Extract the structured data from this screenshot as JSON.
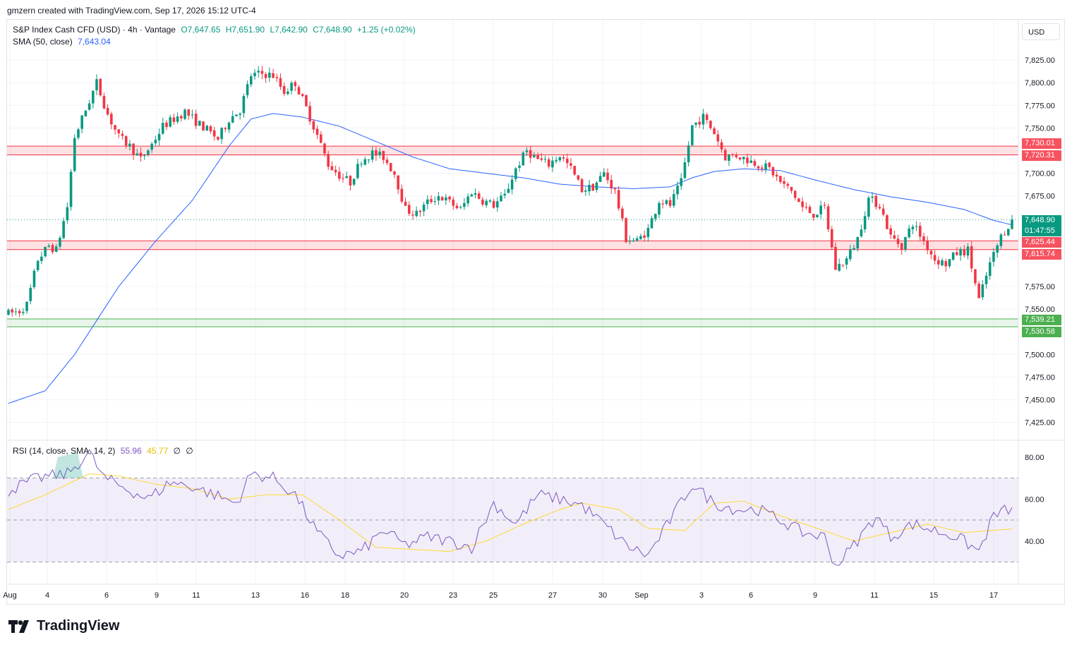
{
  "header": {
    "credit": "gmzern created with TradingView.com, Sep 17, 2026 15:12 UTC-4"
  },
  "main_legend": {
    "symbol": "S&P Index Cash CFD (USD) · 4h · Vantage",
    "open": "O7,647.65",
    "high": "H7,651.90",
    "low": "L7,642.90",
    "close": "C7,648.90",
    "change": "+1.25 (+0.02%)",
    "sma_label": "SMA (50, close)",
    "sma_value": "7,643.04"
  },
  "rsi_legend": {
    "label": "RSI (14, close, SMA, 14, 2)",
    "rsi_value": "55.96",
    "ma_value": "45.77",
    "extra1": "∅",
    "extra2": "∅"
  },
  "currency_button": "USD",
  "brand": "TradingView",
  "price_tags": {
    "r1_top": "7,730.01",
    "r1_bot": "7,720.31",
    "last": "7,648.90",
    "countdown": "01:47:55",
    "r2_top": "7,625.44",
    "r2_bot": "7,615.74",
    "s1_top": "7,539.21",
    "s1_bot": "7,530.58"
  },
  "colors": {
    "up": "#089981",
    "down": "#f23645",
    "sma": "#2962ff",
    "rsi": "#7e57c2",
    "rsi_ma": "#fdd835",
    "resistance": "#f23645",
    "support": "#4caf50"
  },
  "chart_data": {
    "type": "candlestick",
    "title": "S&P Index Cash CFD (USD) · 4h · Vantage",
    "y_ticks": [
      7825,
      7800,
      7775,
      7750,
      7700,
      7675,
      7575,
      7550,
      7500,
      7475,
      7450,
      7425
    ],
    "y_tick_labels": [
      "7,825.00",
      "7,800.00",
      "7,775.00",
      "7,750.00",
      "7,700.00",
      "7,675.00",
      "7,575.00",
      "7,550.00",
      "7,500.00",
      "7,475.00",
      "7,450.00",
      "7,425.00"
    ],
    "ylim": [
      7400,
      7840
    ],
    "x_ticks": [
      "Aug",
      "4",
      "6",
      "9",
      "11",
      "13",
      "16",
      "18",
      "20",
      "23",
      "25",
      "27",
      "30",
      "Sep",
      "3",
      "6",
      "9",
      "11",
      "15",
      "17"
    ],
    "zones": [
      {
        "name": "resistance",
        "top": 7730.01,
        "bottom": 7720.31
      },
      {
        "name": "resistance",
        "top": 7625.44,
        "bottom": 7615.74
      },
      {
        "name": "support",
        "top": 7539.21,
        "bottom": 7530.58
      }
    ],
    "last_price": 7648.9,
    "anchors": [
      [
        0,
        7545
      ],
      [
        3,
        7548
      ],
      [
        5,
        7555
      ],
      [
        8,
        7605
      ],
      [
        11,
        7620
      ],
      [
        13,
        7615
      ],
      [
        16,
        7663
      ],
      [
        18,
        7740
      ],
      [
        21,
        7770
      ],
      [
        24,
        7800
      ],
      [
        27,
        7765
      ],
      [
        30,
        7740
      ],
      [
        33,
        7730
      ],
      [
        36,
        7715
      ],
      [
        39,
        7732
      ],
      [
        42,
        7752
      ],
      [
        45,
        7760
      ],
      [
        48,
        7768
      ],
      [
        51,
        7757
      ],
      [
        54,
        7748
      ],
      [
        57,
        7738
      ],
      [
        60,
        7760
      ],
      [
        63,
        7770
      ],
      [
        66,
        7808
      ],
      [
        69,
        7810
      ],
      [
        72,
        7808
      ],
      [
        75,
        7790
      ],
      [
        78,
        7800
      ],
      [
        81,
        7772
      ],
      [
        84,
        7742
      ],
      [
        87,
        7710
      ],
      [
        90,
        7698
      ],
      [
        93,
        7690
      ],
      [
        96,
        7715
      ],
      [
        99,
        7722
      ],
      [
        102,
        7718
      ],
      [
        105,
        7700
      ],
      [
        108,
        7660
      ],
      [
        111,
        7655
      ],
      [
        114,
        7668
      ],
      [
        117,
        7675
      ],
      [
        120,
        7668
      ],
      [
        123,
        7660
      ],
      [
        126,
        7680
      ],
      [
        129,
        7670
      ],
      [
        132,
        7665
      ],
      [
        135,
        7675
      ],
      [
        138,
        7705
      ],
      [
        141,
        7725
      ],
      [
        144,
        7715
      ],
      [
        147,
        7710
      ],
      [
        150,
        7720
      ],
      [
        153,
        7705
      ],
      [
        156,
        7682
      ],
      [
        159,
        7685
      ],
      [
        162,
        7700
      ],
      [
        165,
        7680
      ],
      [
        168,
        7628
      ],
      [
        171,
        7625
      ],
      [
        174,
        7638
      ],
      [
        177,
        7670
      ],
      [
        180,
        7665
      ],
      [
        183,
        7690
      ],
      [
        186,
        7752
      ],
      [
        189,
        7762
      ],
      [
        192,
        7745
      ],
      [
        195,
        7718
      ],
      [
        198,
        7720
      ],
      [
        201,
        7715
      ],
      [
        204,
        7710
      ],
      [
        207,
        7705
      ],
      [
        210,
        7690
      ],
      [
        213,
        7680
      ],
      [
        216,
        7662
      ],
      [
        219,
        7655
      ],
      [
        222,
        7662
      ],
      [
        225,
        7595
      ],
      [
        228,
        7605
      ],
      [
        231,
        7628
      ],
      [
        234,
        7672
      ],
      [
        237,
        7665
      ],
      [
        240,
        7630
      ],
      [
        243,
        7620
      ],
      [
        246,
        7645
      ],
      [
        249,
        7625
      ],
      [
        252,
        7605
      ],
      [
        255,
        7600
      ],
      [
        258,
        7612
      ],
      [
        261,
        7615
      ],
      [
        264,
        7560
      ],
      [
        267,
        7600
      ],
      [
        270,
        7630
      ],
      [
        273,
        7648.9
      ]
    ],
    "sma50": [
      [
        0,
        7446
      ],
      [
        10,
        7460
      ],
      [
        18,
        7500
      ],
      [
        30,
        7575
      ],
      [
        40,
        7625
      ],
      [
        50,
        7670
      ],
      [
        60,
        7730
      ],
      [
        66,
        7760
      ],
      [
        72,
        7766
      ],
      [
        80,
        7762
      ],
      [
        90,
        7752
      ],
      [
        100,
        7735
      ],
      [
        110,
        7718
      ],
      [
        120,
        7705
      ],
      [
        130,
        7700
      ],
      [
        140,
        7695
      ],
      [
        150,
        7688
      ],
      [
        160,
        7685
      ],
      [
        170,
        7683
      ],
      [
        180,
        7685
      ],
      [
        186,
        7695
      ],
      [
        192,
        7702
      ],
      [
        200,
        7705
      ],
      [
        210,
        7703
      ],
      [
        220,
        7692
      ],
      [
        230,
        7682
      ],
      [
        240,
        7674
      ],
      [
        250,
        7668
      ],
      [
        260,
        7660
      ],
      [
        268,
        7648
      ],
      [
        273,
        7643.04
      ]
    ],
    "rsi": {
      "levels": [
        70,
        50,
        30
      ],
      "y_ticks": [
        80,
        60,
        40
      ],
      "last_rsi": 55.96,
      "last_ma": 45.77,
      "rsi_anchors": [
        [
          0,
          64
        ],
        [
          8,
          70
        ],
        [
          16,
          72
        ],
        [
          22,
          82
        ],
        [
          26,
          70
        ],
        [
          32,
          65
        ],
        [
          38,
          60
        ],
        [
          44,
          68
        ],
        [
          50,
          66
        ],
        [
          56,
          62
        ],
        [
          62,
          58
        ],
        [
          66,
          72
        ],
        [
          72,
          70
        ],
        [
          78,
          62
        ],
        [
          84,
          44
        ],
        [
          90,
          33
        ],
        [
          96,
          35
        ],
        [
          102,
          45
        ],
        [
          108,
          38
        ],
        [
          114,
          42
        ],
        [
          120,
          40
        ],
        [
          126,
          37
        ],
        [
          132,
          58
        ],
        [
          138,
          48
        ],
        [
          144,
          62
        ],
        [
          150,
          60
        ],
        [
          156,
          57
        ],
        [
          162,
          48
        ],
        [
          168,
          38
        ],
        [
          174,
          33
        ],
        [
          180,
          50
        ],
        [
          186,
          67
        ],
        [
          192,
          58
        ],
        [
          198,
          55
        ],
        [
          204,
          55
        ],
        [
          210,
          50
        ],
        [
          216,
          44
        ],
        [
          222,
          42
        ],
        [
          225,
          28
        ],
        [
          230,
          38
        ],
        [
          236,
          52
        ],
        [
          240,
          42
        ],
        [
          246,
          48
        ],
        [
          252,
          45
        ],
        [
          258,
          42
        ],
        [
          264,
          35
        ],
        [
          268,
          52
        ],
        [
          273,
          55.96
        ]
      ],
      "ma_anchors": [
        [
          0,
          55
        ],
        [
          10,
          62
        ],
        [
          22,
          72
        ],
        [
          30,
          71
        ],
        [
          40,
          67
        ],
        [
          50,
          65
        ],
        [
          60,
          60
        ],
        [
          70,
          62
        ],
        [
          80,
          62
        ],
        [
          90,
          50
        ],
        [
          100,
          37
        ],
        [
          110,
          36
        ],
        [
          120,
          35
        ],
        [
          130,
          40
        ],
        [
          140,
          48
        ],
        [
          150,
          55
        ],
        [
          156,
          58
        ],
        [
          166,
          55
        ],
        [
          174,
          46
        ],
        [
          184,
          45
        ],
        [
          192,
          58
        ],
        [
          200,
          59
        ],
        [
          210,
          52
        ],
        [
          220,
          46
        ],
        [
          230,
          40
        ],
        [
          240,
          44
        ],
        [
          250,
          48
        ],
        [
          260,
          44
        ],
        [
          273,
          45.77
        ]
      ]
    }
  }
}
